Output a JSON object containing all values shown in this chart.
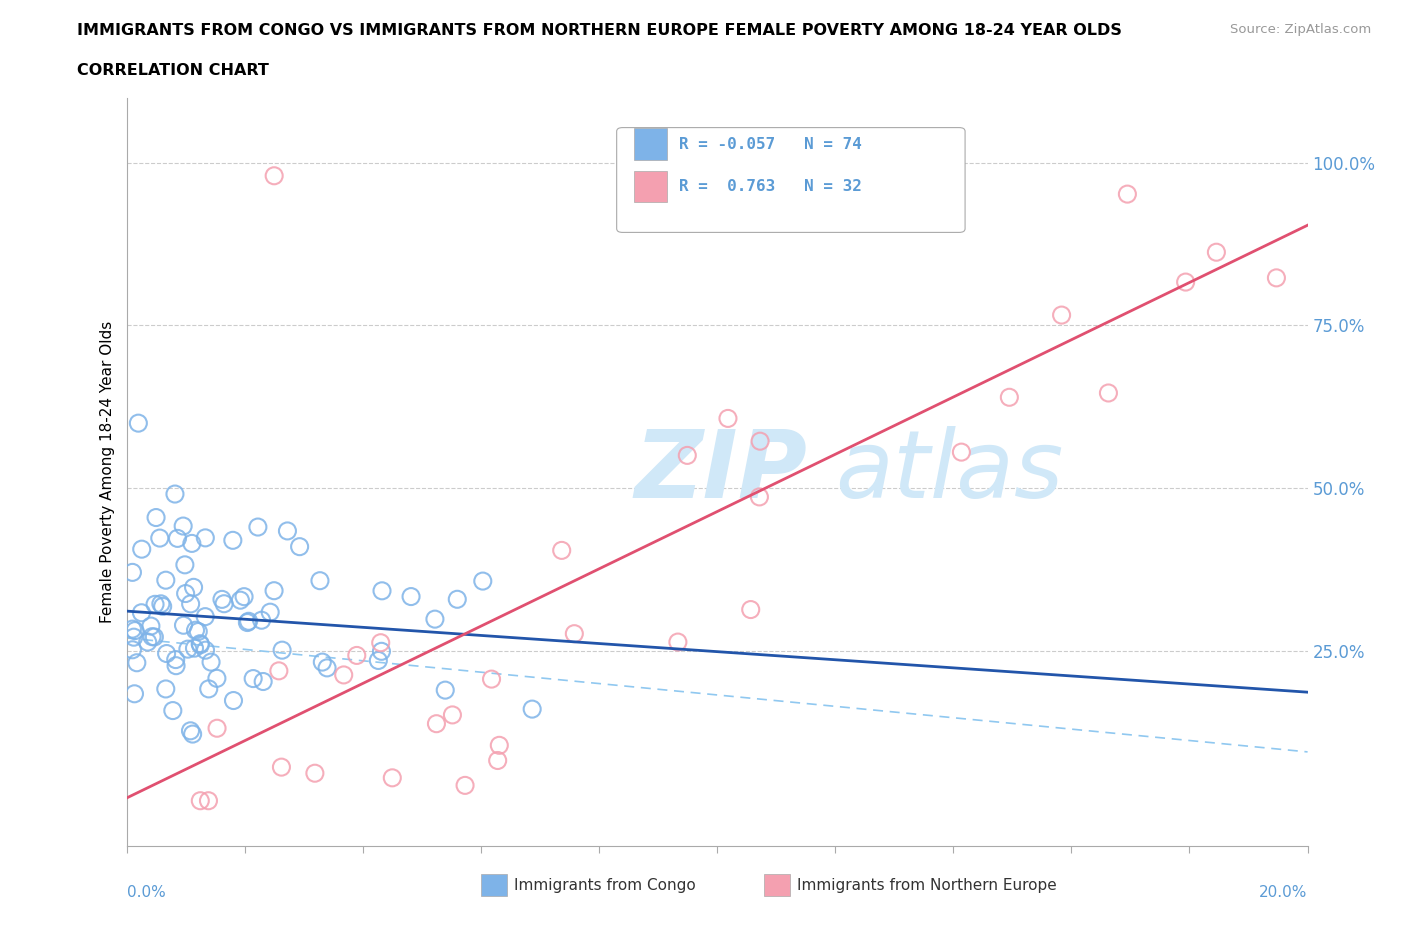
{
  "title": "IMMIGRANTS FROM CONGO VS IMMIGRANTS FROM NORTHERN EUROPE FEMALE POVERTY AMONG 18-24 YEAR OLDS",
  "subtitle": "CORRELATION CHART",
  "source": "Source: ZipAtlas.com",
  "ylabel": "Female Poverty Among 18-24 Year Olds",
  "ytick_labels": [
    "25.0%",
    "50.0%",
    "75.0%",
    "100.0%"
  ],
  "ytick_values": [
    0.25,
    0.5,
    0.75,
    1.0
  ],
  "xlim": [
    0.0,
    0.2
  ],
  "ylim": [
    -0.05,
    1.1
  ],
  "congo_R": -0.057,
  "congo_N": 74,
  "northern_europe_R": 0.763,
  "northern_europe_N": 32,
  "congo_color": "#7EB3E8",
  "northern_europe_color": "#F4A0B0",
  "congo_line_color": "#2255AA",
  "northern_europe_line_color": "#E05070",
  "dashed_line_color": "#90C8F0",
  "watermark_color": "#D0E8F8",
  "right_label_color": "#5B9BD5",
  "bottom_label_color": "#5B9BD5"
}
